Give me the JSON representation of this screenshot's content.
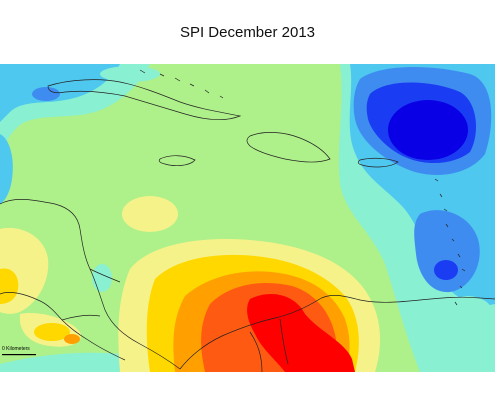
{
  "title": "SPI December 2013",
  "scale_bar_label": "0 Kilometers",
  "colors": {
    "background_near_normal": "#aef08a",
    "moderately_wet": "#8af0d2",
    "wet": "#4ec8ee",
    "very_wet": "#3f8cf0",
    "extremely_wet": "#1a3cf2",
    "exceptionally_wet": "#0a00e6",
    "dry": "#f6f28a",
    "moderately_dry": "#ffd800",
    "severely_dry": "#ffa000",
    "extremely_dry": "#ff5a12",
    "exceptionally_dry": "#ff0000",
    "coastline": "#222222"
  }
}
